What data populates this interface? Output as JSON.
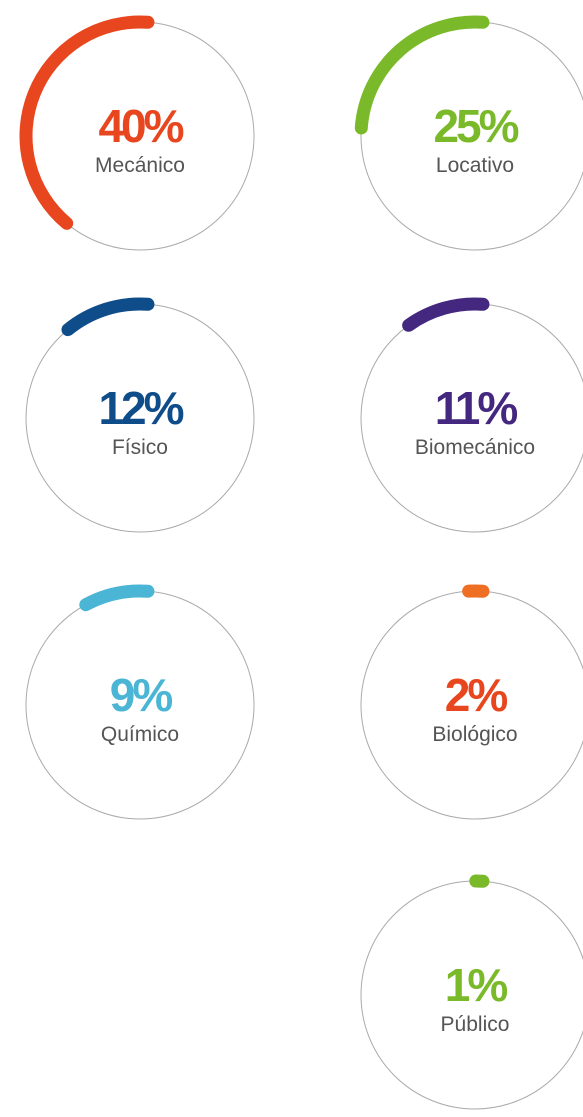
{
  "chart_data": {
    "type": "radial",
    "categories": [
      "Mecánico",
      "Locativo",
      "Físico",
      "Biomecánico",
      "Químico",
      "Biológico",
      "Público"
    ],
    "values": [
      40,
      25,
      12,
      11,
      9,
      2,
      1
    ],
    "value_labels": [
      "40%",
      "25%",
      "12%",
      "11%",
      "9%",
      "2%",
      "1%"
    ],
    "colors": [
      "#e8461e",
      "#7ab929",
      "#0e4c8a",
      "#44287f",
      "#4ab5d4",
      "#ee6e23",
      "#7ab929"
    ],
    "label_colors": [
      "#e8461e",
      "#7ab929",
      "#0e4c8a",
      "#44287f",
      "#4ab5d4",
      "#e8461e",
      "#7ab929"
    ]
  }
}
